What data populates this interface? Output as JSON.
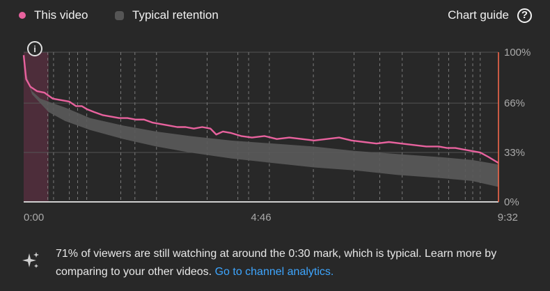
{
  "legend": {
    "this_video": {
      "label": "This video",
      "color": "#e8629e"
    },
    "typical": {
      "label": "Typical retention",
      "color": "#555555"
    }
  },
  "chart_guide": {
    "label": "Chart guide",
    "icon": "help-circle-icon"
  },
  "chart_data": {
    "type": "line",
    "xlim": [
      0,
      572
    ],
    "ylim": [
      0,
      100
    ],
    "x_tick_labels": [
      {
        "value": 0,
        "label": "0:00"
      },
      {
        "value": 286,
        "label": "4:46"
      },
      {
        "value": 572,
        "label": "9:32"
      }
    ],
    "y_tick_labels": [
      {
        "value": 100,
        "label": "100%"
      },
      {
        "value": 66,
        "label": "66%"
      },
      {
        "value": 33,
        "label": "33%"
      },
      {
        "value": 0,
        "label": "0%"
      }
    ],
    "grid": true,
    "highlight_range": [
      0,
      30
    ],
    "current_marker_x": 572,
    "key_moment_markers": [
      29,
      36,
      55,
      65,
      76,
      117,
      134,
      160,
      221,
      258,
      271,
      296,
      349,
      398,
      429,
      456,
      500,
      512,
      532,
      541,
      550
    ],
    "series": [
      {
        "name": "This video",
        "color": "#e8629e",
        "x": [
          0,
          3,
          8,
          16,
          25,
          35,
          45,
          55,
          63,
          70,
          76,
          85,
          95,
          105,
          115,
          125,
          135,
          145,
          155,
          165,
          175,
          185,
          195,
          205,
          215,
          225,
          232,
          240,
          250,
          262,
          275,
          290,
          305,
          320,
          335,
          350,
          365,
          380,
          395,
          410,
          425,
          440,
          455,
          470,
          485,
          500,
          510,
          520,
          530,
          540,
          550,
          560,
          572
        ],
        "y": [
          98,
          82,
          77,
          74,
          73,
          69,
          68,
          67,
          64,
          64,
          62,
          60,
          58,
          57,
          56,
          56,
          55,
          55,
          53,
          52,
          51,
          50,
          50,
          49,
          50,
          49,
          45,
          47,
          46,
          44,
          43,
          44,
          42,
          43,
          42,
          41,
          42,
          43,
          41,
          40,
          39,
          40,
          39,
          38,
          37,
          37,
          36,
          36,
          35,
          34,
          33,
          30,
          26
        ]
      },
      {
        "name": "Typical retention",
        "color": "#5a5a5a",
        "x": [
          0,
          10,
          20,
          30,
          50,
          80,
          120,
          160,
          200,
          250,
          300,
          350,
          400,
          450,
          500,
          540,
          572
        ],
        "y_upper": [
          90,
          74,
          69,
          67,
          63,
          56,
          51,
          47,
          44,
          41,
          39,
          37,
          34,
          32,
          30,
          28,
          25
        ],
        "y_lower": [
          90,
          72,
          66,
          60,
          54,
          48,
          42,
          37,
          33,
          29,
          26,
          23,
          21,
          18,
          16,
          14,
          10
        ]
      }
    ]
  },
  "insight": {
    "icon": "sparkle-icon",
    "text": "71% of viewers are still watching at around the 0:30 mark, which is typical. Learn more by comparing to your other videos.",
    "link": "Go to channel analytics."
  }
}
